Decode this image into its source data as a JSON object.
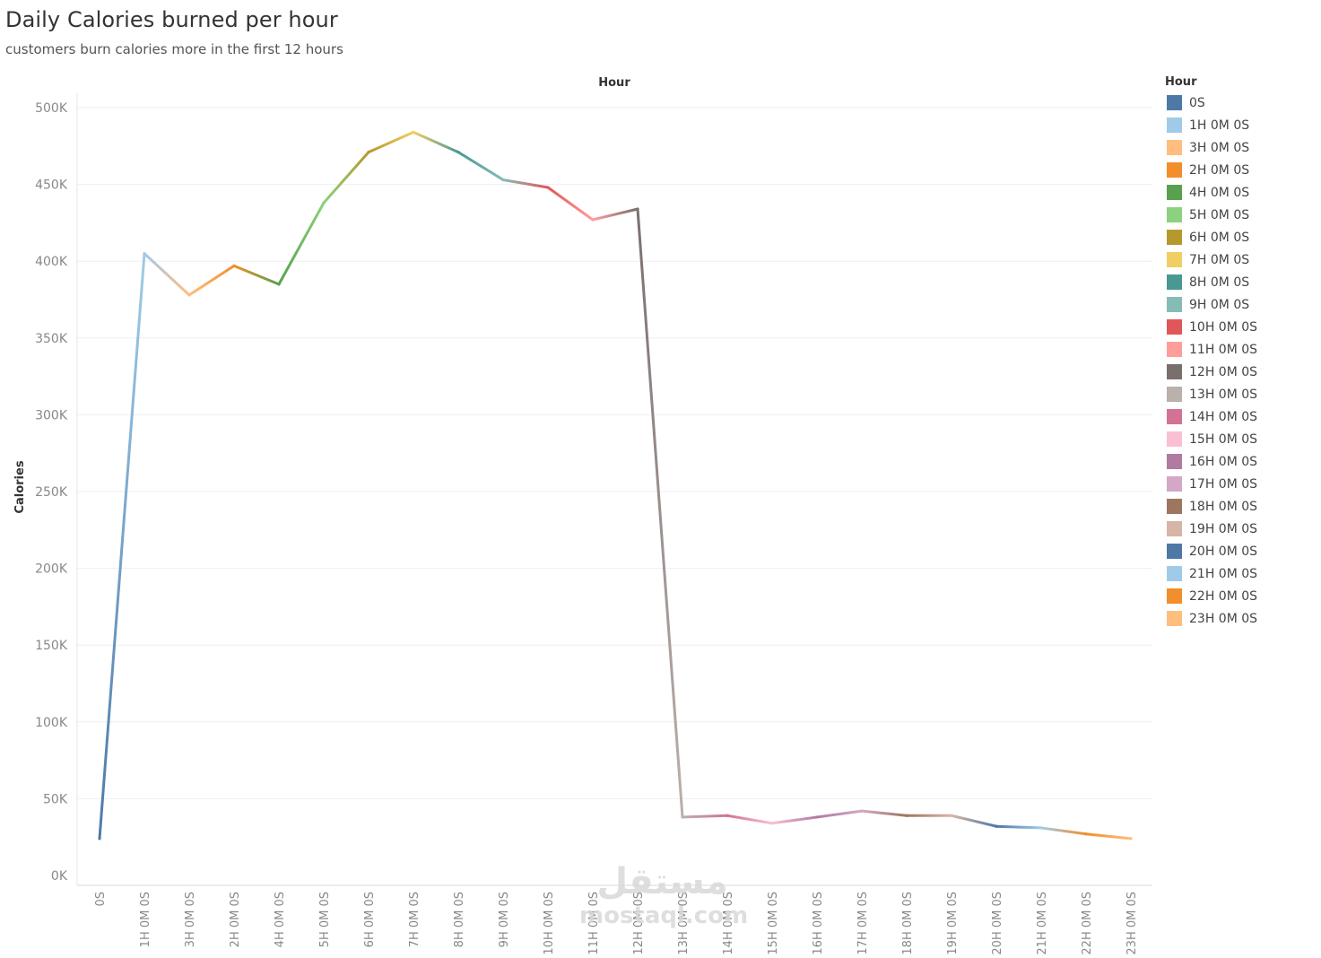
{
  "chart_data": {
    "type": "line",
    "title": "Daily Calories burned per hour",
    "subtitle": "customers burn calories more in the first 12 hours",
    "column_header": "Hour",
    "ylabel": "Calories",
    "legend_title": "Hour",
    "legend_position": "right",
    "ylim": [
      0,
      500000
    ],
    "yticks": [
      {
        "value": 0,
        "label": "0K"
      },
      {
        "value": 50000,
        "label": "50K"
      },
      {
        "value": 100000,
        "label": "100K"
      },
      {
        "value": 150000,
        "label": "150K"
      },
      {
        "value": 200000,
        "label": "200K"
      },
      {
        "value": 250000,
        "label": "250K"
      },
      {
        "value": 300000,
        "label": "300K"
      },
      {
        "value": 350000,
        "label": "350K"
      },
      {
        "value": 400000,
        "label": "400K"
      },
      {
        "value": 450000,
        "label": "450K"
      },
      {
        "value": 500000,
        "label": "500K"
      }
    ],
    "grid": true,
    "categories": [
      "0S",
      "1H 0M 0S",
      "3H 0M 0S",
      "2H 0M 0S",
      "4H 0M 0S",
      "5H 0M 0S",
      "6H 0M 0S",
      "7H 0M 0S",
      "8H 0M 0S",
      "9H 0M 0S",
      "10H 0M 0S",
      "11H 0M 0S",
      "12H 0M 0S",
      "13H 0M 0S",
      "14H 0M 0S",
      "15H 0M 0S",
      "16H 0M 0S",
      "17H 0M 0S",
      "18H 0M 0S",
      "19H 0M 0S",
      "20H 0M 0S",
      "21H 0M 0S",
      "22H 0M 0S",
      "23H 0M 0S"
    ],
    "values": [
      24000,
      405000,
      378000,
      397000,
      385000,
      438000,
      471000,
      484000,
      471000,
      453000,
      448000,
      427000,
      434000,
      38000,
      39000,
      34000,
      38000,
      42000,
      39000,
      39000,
      32000,
      31000,
      27000,
      24000
    ],
    "colors": [
      "#4e79a7",
      "#a0cbe8",
      "#ffbe7d",
      "#f28e2b",
      "#59a14f",
      "#8cd17d",
      "#b6992d",
      "#f1ce63",
      "#499894",
      "#86bcb6",
      "#e15759",
      "#ff9d9a",
      "#79706e",
      "#bab0ac",
      "#d37295",
      "#fabfd2",
      "#b07aa1",
      "#d4a6c8",
      "#9d7660",
      "#d7b5a6",
      "#4e79a7",
      "#a0cbe8",
      "#f28e2b",
      "#ffbe7d"
    ],
    "legend": [
      {
        "label": "0S",
        "color": "#4e79a7"
      },
      {
        "label": "1H 0M 0S",
        "color": "#a0cbe8"
      },
      {
        "label": "3H 0M 0S",
        "color": "#ffbe7d"
      },
      {
        "label": "2H 0M 0S",
        "color": "#f28e2b"
      },
      {
        "label": "4H 0M 0S",
        "color": "#59a14f"
      },
      {
        "label": "5H 0M 0S",
        "color": "#8cd17d"
      },
      {
        "label": "6H 0M 0S",
        "color": "#b6992d"
      },
      {
        "label": "7H 0M 0S",
        "color": "#f1ce63"
      },
      {
        "label": "8H 0M 0S",
        "color": "#499894"
      },
      {
        "label": "9H 0M 0S",
        "color": "#86bcb6"
      },
      {
        "label": "10H 0M 0S",
        "color": "#e15759"
      },
      {
        "label": "11H 0M 0S",
        "color": "#ff9d9a"
      },
      {
        "label": "12H 0M 0S",
        "color": "#79706e"
      },
      {
        "label": "13H 0M 0S",
        "color": "#bab0ac"
      },
      {
        "label": "14H 0M 0S",
        "color": "#d37295"
      },
      {
        "label": "15H 0M 0S",
        "color": "#fabfd2"
      },
      {
        "label": "16H 0M 0S",
        "color": "#b07aa1"
      },
      {
        "label": "17H 0M 0S",
        "color": "#d4a6c8"
      },
      {
        "label": "18H 0M 0S",
        "color": "#9d7660"
      },
      {
        "label": "19H 0M 0S",
        "color": "#d7b5a6"
      },
      {
        "label": "20H 0M 0S",
        "color": "#4e79a7"
      },
      {
        "label": "21H 0M 0S",
        "color": "#a0cbe8"
      },
      {
        "label": "22H 0M 0S",
        "color": "#f28e2b"
      },
      {
        "label": "23H 0M 0S",
        "color": "#ffbe7d"
      }
    ]
  },
  "watermark": {
    "arabic": "مستقل",
    "site": "mostaql.com"
  }
}
